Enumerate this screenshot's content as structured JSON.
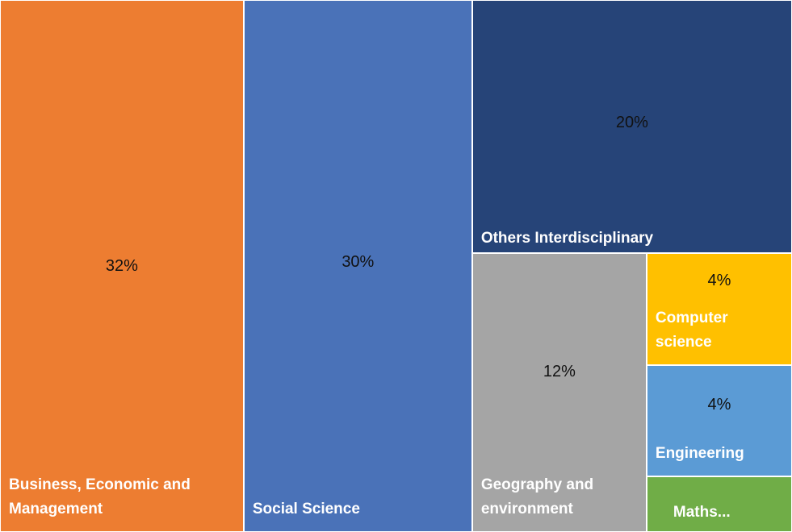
{
  "chart_data": {
    "type": "treemap",
    "items": [
      {
        "name": "Business, Economic and Management",
        "label_lines": [
          "Business, Economic and",
          "Management"
        ],
        "value": 32,
        "value_label": "32%",
        "color": "#ED7D31"
      },
      {
        "name": "Social Science",
        "label_lines": [
          "Social Science"
        ],
        "value": 30,
        "value_label": "30%",
        "color": "#4A72B8"
      },
      {
        "name": "Others Interdisciplinary",
        "label_lines": [
          "Others Interdisciplinary"
        ],
        "value": 20,
        "value_label": "20%",
        "color": "#264478"
      },
      {
        "name": "Geography and environment",
        "label_lines": [
          "Geography and",
          "environment"
        ],
        "value": 12,
        "value_label": "12%",
        "color": "#A5A5A5"
      },
      {
        "name": "Computer science",
        "label_lines": [
          "Computer",
          "science"
        ],
        "value": 4,
        "value_label": "4%",
        "color": "#FFC000"
      },
      {
        "name": "Engineering",
        "label_lines": [
          "Engineering"
        ],
        "value": 4,
        "value_label": "4%",
        "color": "#5B9BD5"
      },
      {
        "name": "Maths...",
        "label_lines": [
          "Maths..."
        ],
        "value": 2,
        "value_label": null,
        "color": "#70AD47"
      }
    ]
  }
}
